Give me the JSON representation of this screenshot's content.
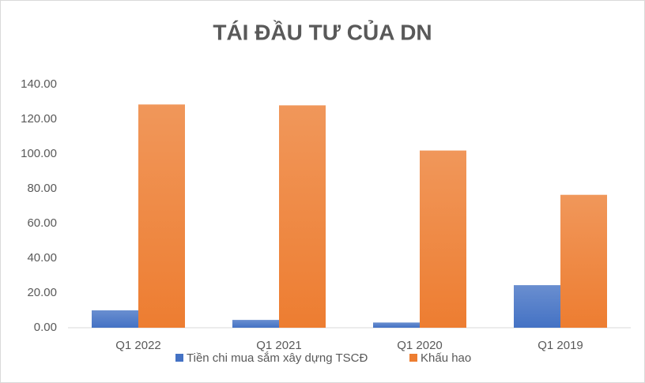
{
  "chart_data": {
    "type": "bar",
    "title": "TÁI ĐẦU TƯ CỦA DN",
    "categories": [
      "Q1 2022",
      "Q1 2021",
      "Q1 2020",
      "Q1 2019"
    ],
    "series": [
      {
        "name": "Tiền chi mua sắm xây dựng TSCĐ",
        "color": "#4472c4",
        "values": [
          10,
          4.5,
          3,
          24.5
        ]
      },
      {
        "name": "Khấu hao",
        "color": "#ed7d31",
        "values": [
          128.5,
          128,
          102,
          76.5
        ]
      }
    ],
    "ylim": [
      0,
      140
    ],
    "yticks": [
      {
        "value": 0,
        "label": "0.00"
      },
      {
        "value": 20,
        "label": "20.00"
      },
      {
        "value": 40,
        "label": "40.00"
      },
      {
        "value": 60,
        "label": "60.00"
      },
      {
        "value": 80,
        "label": "80.00"
      },
      {
        "value": 100,
        "label": "100.00"
      },
      {
        "value": 120,
        "label": "120.00"
      },
      {
        "value": 140,
        "label": "140.00"
      }
    ],
    "grid": false,
    "legend": "bottom"
  }
}
